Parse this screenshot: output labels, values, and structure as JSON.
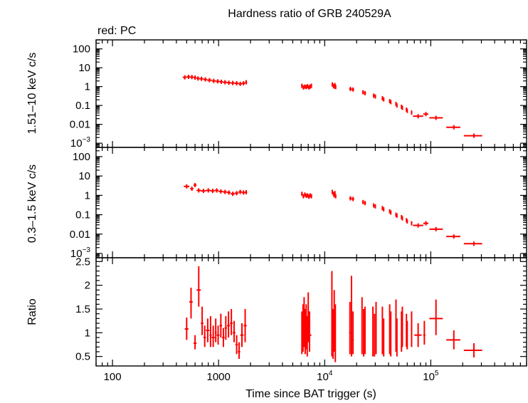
{
  "title": "Hardness ratio of GRB 240529A",
  "legend_note": "red: PC",
  "series_color": "#ff0000",
  "xlabel": "Time since BAT trigger (s)",
  "chart_data": [
    {
      "type": "scatter",
      "panel": "top",
      "ylabel": "1.51–10 keV c/s",
      "xscale": "log",
      "yscale": "log",
      "xlim": [
        70,
        800000
      ],
      "ylim": [
        0.0006,
        300
      ],
      "x_ticks": [
        {
          "label": "100",
          "value": 100
        },
        {
          "label": "1000",
          "value": 1000
        },
        {
          "label": "10",
          "sup": "4",
          "value": 10000
        },
        {
          "label": "10",
          "sup": "5",
          "value": 100000
        }
      ],
      "y_ticks": [
        {
          "label": "100",
          "value": 100
        },
        {
          "label": "10",
          "value": 10
        },
        {
          "label": "1",
          "value": 1
        },
        {
          "label": "0.1",
          "value": 0.1
        },
        {
          "label": "0.01",
          "value": 0.01
        },
        {
          "label": "10",
          "sup": "−3",
          "value": 0.001
        }
      ],
      "points": [
        [
          480,
          3.1,
          460,
          500
        ],
        [
          520,
          3.3,
          500,
          540
        ],
        [
          560,
          3.2,
          540,
          580
        ],
        [
          600,
          3.0,
          580,
          620
        ],
        [
          640,
          2.7,
          620,
          660
        ],
        [
          690,
          2.6,
          660,
          720
        ],
        [
          750,
          2.4,
          720,
          780
        ],
        [
          820,
          2.2,
          780,
          860
        ],
        [
          900,
          2.0,
          860,
          940
        ],
        [
          980,
          1.9,
          940,
          1020
        ],
        [
          1060,
          1.8,
          1020,
          1100
        ],
        [
          1150,
          1.7,
          1100,
          1200
        ],
        [
          1250,
          1.6,
          1200,
          1300
        ],
        [
          1360,
          1.55,
          1300,
          1420
        ],
        [
          1480,
          1.5,
          1420,
          1540
        ],
        [
          1600,
          1.4,
          1540,
          1660
        ],
        [
          1720,
          1.5,
          1660,
          1780
        ],
        [
          1820,
          1.7,
          1780,
          1860
        ],
        [
          6100,
          1.1,
          6000,
          6200
        ],
        [
          6300,
          0.9,
          6200,
          6400
        ],
        [
          6500,
          1.0,
          6400,
          6600
        ],
        [
          6700,
          0.95,
          6600,
          6800
        ],
        [
          6900,
          1.05,
          6800,
          7000
        ],
        [
          7100,
          0.9,
          7000,
          7200
        ],
        [
          7300,
          1.0,
          7200,
          7400
        ],
        [
          7500,
          1.1,
          7400,
          7600
        ],
        [
          11800,
          1.3,
          11600,
          12000
        ],
        [
          12100,
          1.1,
          12000,
          12200
        ],
        [
          12300,
          1.0,
          12200,
          12400
        ],
        [
          12500,
          1.2,
          12400,
          12600
        ],
        [
          12700,
          0.95,
          12600,
          12800
        ],
        [
          17500,
          0.75,
          17000,
          18000
        ],
        [
          18500,
          0.7,
          18000,
          19000
        ],
        [
          23000,
          0.5,
          22500,
          23500
        ],
        [
          24000,
          0.45,
          23500,
          24500
        ],
        [
          29000,
          0.33,
          28500,
          29500
        ],
        [
          30000,
          0.3,
          29500,
          30500
        ],
        [
          35000,
          0.24,
          34500,
          35500
        ],
        [
          36000,
          0.21,
          35500,
          36500
        ],
        [
          41000,
          0.17,
          40500,
          41500
        ],
        [
          42000,
          0.15,
          41500,
          42500
        ],
        [
          47000,
          0.12,
          46500,
          47500
        ],
        [
          48000,
          0.1,
          47500,
          48500
        ],
        [
          53000,
          0.085,
          52500,
          53500
        ],
        [
          54000,
          0.075,
          53500,
          54500
        ],
        [
          59000,
          0.06,
          58500,
          59500
        ],
        [
          60000,
          0.052,
          59500,
          60500
        ],
        [
          66000,
          0.042,
          65000,
          67000
        ],
        [
          76000,
          0.027,
          68000,
          85000
        ],
        [
          90000,
          0.035,
          85000,
          95000
        ],
        [
          112000,
          0.022,
          97000,
          130000
        ],
        [
          165000,
          0.007,
          140000,
          190000
        ],
        [
          255000,
          0.0025,
          205000,
          305000
        ]
      ]
    },
    {
      "type": "scatter",
      "panel": "middle",
      "ylabel": "0.3–1.5 keV c/s",
      "xscale": "log",
      "yscale": "log",
      "xlim": [
        70,
        800000
      ],
      "ylim": [
        0.0006,
        300
      ],
      "y_ticks": [
        {
          "label": "100",
          "value": 100
        },
        {
          "label": "10",
          "value": 10
        },
        {
          "label": "1",
          "value": 1
        },
        {
          "label": "0.1",
          "value": 0.1
        },
        {
          "label": "0.01",
          "value": 0.01
        },
        {
          "label": "10",
          "sup": "−3",
          "value": 0.001
        }
      ],
      "points": [
        [
          500,
          2.9,
          470,
          530
        ],
        [
          560,
          2.2,
          540,
          580
        ],
        [
          600,
          3.4,
          580,
          620
        ],
        [
          650,
          1.8,
          620,
          680
        ],
        [
          720,
          1.7,
          680,
          760
        ],
        [
          800,
          1.8,
          760,
          840
        ],
        [
          880,
          1.7,
          840,
          920
        ],
        [
          960,
          1.8,
          920,
          1000
        ],
        [
          1050,
          1.6,
          1000,
          1100
        ],
        [
          1150,
          1.5,
          1100,
          1200
        ],
        [
          1250,
          1.4,
          1200,
          1300
        ],
        [
          1360,
          1.2,
          1300,
          1420
        ],
        [
          1480,
          1.3,
          1420,
          1540
        ],
        [
          1600,
          1.5,
          1540,
          1660
        ],
        [
          1720,
          1.4,
          1660,
          1780
        ],
        [
          1820,
          1.45,
          1780,
          1860
        ],
        [
          6100,
          1.2,
          6000,
          6200
        ],
        [
          6300,
          0.9,
          6200,
          6400
        ],
        [
          6500,
          1.1,
          6400,
          6600
        ],
        [
          6700,
          0.95,
          6600,
          6800
        ],
        [
          6900,
          1.0,
          6800,
          7000
        ],
        [
          7100,
          0.85,
          7000,
          7200
        ],
        [
          7300,
          1.0,
          7200,
          7400
        ],
        [
          7500,
          0.9,
          7400,
          7600
        ],
        [
          11800,
          1.5,
          11600,
          12000
        ],
        [
          12100,
          1.2,
          12000,
          12200
        ],
        [
          12300,
          1.0,
          12200,
          12400
        ],
        [
          12500,
          1.3,
          12400,
          12600
        ],
        [
          12700,
          0.9,
          12600,
          12800
        ],
        [
          17500,
          0.7,
          17000,
          18000
        ],
        [
          18500,
          0.65,
          18000,
          19000
        ],
        [
          23000,
          0.45,
          22500,
          23500
        ],
        [
          24000,
          0.4,
          23500,
          24500
        ],
        [
          29000,
          0.3,
          28500,
          29500
        ],
        [
          30000,
          0.27,
          29500,
          30500
        ],
        [
          35000,
          0.22,
          34500,
          35500
        ],
        [
          36000,
          0.19,
          35500,
          36500
        ],
        [
          41000,
          0.15,
          40500,
          41500
        ],
        [
          42000,
          0.13,
          41500,
          42500
        ],
        [
          47000,
          0.1,
          46500,
          47500
        ],
        [
          48000,
          0.09,
          47500,
          48500
        ],
        [
          53000,
          0.075,
          52500,
          53500
        ],
        [
          54000,
          0.065,
          53500,
          54500
        ],
        [
          59000,
          0.052,
          58500,
          59500
        ],
        [
          60000,
          0.045,
          59500,
          60500
        ],
        [
          66000,
          0.036,
          65000,
          67000
        ],
        [
          76000,
          0.028,
          68000,
          85000
        ],
        [
          90000,
          0.036,
          85000,
          95000
        ],
        [
          112000,
          0.018,
          97000,
          130000
        ],
        [
          165000,
          0.0075,
          140000,
          190000
        ],
        [
          255000,
          0.0032,
          205000,
          305000
        ]
      ]
    },
    {
      "type": "scatter",
      "panel": "bottom",
      "ylabel": "Ratio",
      "xscale": "log",
      "yscale": "linear",
      "xlim": [
        70,
        800000
      ],
      "ylim": [
        0.3,
        2.58
      ],
      "y_ticks": [
        {
          "label": "2.5",
          "value": 2.5
        },
        {
          "label": "2",
          "value": 2
        },
        {
          "label": "1.5",
          "value": 1.5
        },
        {
          "label": "1",
          "value": 1
        },
        {
          "label": "0.5",
          "value": 0.5
        }
      ],
      "points": [
        [
          500,
          1.08,
          480,
          520,
          0.85,
          1.32
        ],
        [
          550,
          1.65,
          530,
          570,
          1.3,
          1.95
        ],
        [
          600,
          0.78,
          580,
          620,
          0.65,
          0.95
        ],
        [
          650,
          1.9,
          620,
          680,
          1.55,
          2.4
        ],
        [
          700,
          1.2,
          680,
          720,
          0.95,
          1.55
        ],
        [
          740,
          0.9,
          720,
          760,
          0.7,
          1.15
        ],
        [
          790,
          1.05,
          760,
          820,
          0.8,
          1.3
        ],
        [
          840,
          0.95,
          820,
          860,
          0.7,
          1.35
        ],
        [
          890,
          0.9,
          860,
          920,
          0.7,
          1.15
        ],
        [
          940,
          1.0,
          920,
          960,
          0.8,
          1.3
        ],
        [
          990,
          0.95,
          960,
          1020,
          0.75,
          1.15
        ],
        [
          1050,
          1.15,
          1020,
          1080,
          0.9,
          1.4
        ],
        [
          1110,
          0.9,
          1080,
          1140,
          0.7,
          1.1
        ],
        [
          1170,
          1.1,
          1140,
          1200,
          0.85,
          1.35
        ],
        [
          1240,
          1.15,
          1200,
          1280,
          0.9,
          1.45
        ],
        [
          1320,
          1.2,
          1280,
          1360,
          0.95,
          1.5
        ],
        [
          1400,
          1.0,
          1360,
          1440,
          0.8,
          1.25
        ],
        [
          1480,
          0.75,
          1440,
          1520,
          0.55,
          0.95
        ],
        [
          1560,
          0.6,
          1520,
          1600,
          0.45,
          0.8
        ],
        [
          1660,
          0.95,
          1600,
          1720,
          0.7,
          1.2
        ],
        [
          1780,
          1.15,
          1720,
          1840,
          0.8,
          1.5
        ],
        [
          6100,
          0.95,
          6050,
          6150,
          0.55,
          1.45
        ],
        [
          6250,
          1.0,
          6200,
          6300,
          0.6,
          1.6
        ],
        [
          6400,
          1.2,
          6350,
          6450,
          0.7,
          1.75
        ],
        [
          6550,
          0.9,
          6500,
          6600,
          0.55,
          1.5
        ],
        [
          6700,
          1.1,
          6650,
          6750,
          0.65,
          1.6
        ],
        [
          6850,
          0.75,
          6800,
          6900,
          0.5,
          1.35
        ],
        [
          7000,
          1.3,
          6950,
          7050,
          0.8,
          1.85
        ],
        [
          7200,
          0.95,
          7000,
          7500,
          0.6,
          1.45
        ],
        [
          11700,
          1.1,
          11600,
          11800,
          0.5,
          2.3
        ],
        [
          12000,
          0.9,
          11900,
          12100,
          0.45,
          1.5
        ],
        [
          12300,
          1.2,
          12200,
          12400,
          0.6,
          1.9
        ],
        [
          12600,
          0.8,
          12500,
          12700,
          0.38,
          1.6
        ],
        [
          17300,
          1.0,
          17000,
          17600,
          0.55,
          1.65
        ],
        [
          17900,
          1.2,
          17600,
          18200,
          0.5,
          2.2
        ],
        [
          18500,
          0.85,
          18200,
          18800,
          0.55,
          1.45
        ],
        [
          22500,
          1.1,
          22200,
          22800,
          0.55,
          1.75
        ],
        [
          23300,
          0.95,
          23000,
          23600,
          0.5,
          1.5
        ],
        [
          24000,
          1.0,
          23700,
          24300,
          0.55,
          1.55
        ],
        [
          28500,
          1.0,
          28200,
          28800,
          0.5,
          1.55
        ],
        [
          29500,
          0.9,
          29200,
          29800,
          0.5,
          1.4
        ],
        [
          30500,
          1.1,
          30200,
          30800,
          0.55,
          1.65
        ],
        [
          35000,
          1.0,
          34700,
          35300,
          0.55,
          1.55
        ],
        [
          36000,
          0.85,
          35700,
          36300,
          0.5,
          1.3
        ],
        [
          41000,
          1.05,
          40700,
          41300,
          0.55,
          1.6
        ],
        [
          42000,
          0.9,
          41700,
          42300,
          0.5,
          1.45
        ],
        [
          47000,
          1.1,
          46700,
          47300,
          0.6,
          1.7
        ],
        [
          48000,
          0.8,
          47700,
          48300,
          0.5,
          1.3
        ],
        [
          53000,
          1.0,
          52700,
          53300,
          0.6,
          1.45
        ],
        [
          54000,
          1.15,
          53700,
          54300,
          0.7,
          1.55
        ],
        [
          59000,
          1.0,
          58700,
          59300,
          0.7,
          1.4
        ],
        [
          60000,
          0.9,
          59700,
          60300,
          0.65,
          1.25
        ],
        [
          66000,
          1.05,
          65000,
          67000,
          0.7,
          1.45
        ],
        [
          76000,
          0.95,
          70000,
          82000,
          0.7,
          1.2
        ],
        [
          87000,
          0.95,
          85000,
          89000,
          0.75,
          1.25
        ],
        [
          112000,
          1.3,
          97000,
          130000,
          0.95,
          1.7
        ],
        [
          165000,
          0.85,
          140000,
          190000,
          0.65,
          1.05
        ],
        [
          255000,
          0.63,
          205000,
          305000,
          0.48,
          0.78
        ]
      ]
    }
  ]
}
